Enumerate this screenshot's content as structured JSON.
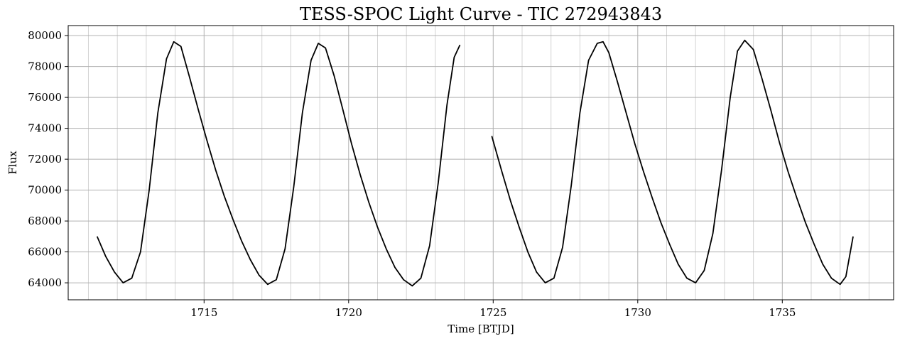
{
  "chart_data": {
    "type": "line",
    "title": "TESS-SPOC Light Curve - TIC 272943843",
    "xlabel": "Time [BTJD]",
    "ylabel": "Flux",
    "xlim": [
      1710.3,
      1738.85
    ],
    "ylim": [
      62900,
      80650
    ],
    "x_ticks": [
      1715,
      1720,
      1725,
      1730,
      1735
    ],
    "x_minor_grid": [
      1711,
      1712,
      1713,
      1714,
      1716,
      1717,
      1718,
      1719,
      1721,
      1722,
      1723,
      1724,
      1726,
      1727,
      1728,
      1729,
      1731,
      1732,
      1733,
      1734,
      1736,
      1737,
      1738
    ],
    "y_ticks": [
      64000,
      66000,
      68000,
      70000,
      72000,
      74000,
      76000,
      78000,
      80000
    ],
    "grid": true,
    "line_color": "#000000",
    "grid_color": "#b0b0b0",
    "series": [
      {
        "segments": [
          {
            "x": [
              1711.3,
              1711.6,
              1711.9,
              1712.2,
              1712.5,
              1712.8,
              1713.1,
              1713.4,
              1713.7,
              1713.95,
              1714.2,
              1714.5,
              1714.8,
              1715.1,
              1715.4,
              1715.7,
              1716.0,
              1716.3,
              1716.6,
              1716.9,
              1717.2,
              1717.5,
              1717.8,
              1718.1,
              1718.4,
              1718.7,
              1718.95,
              1719.2,
              1719.5,
              1719.8,
              1720.1,
              1720.4,
              1720.7,
              1721.0,
              1721.3,
              1721.6,
              1721.9,
              1722.2,
              1722.5,
              1722.8,
              1723.1,
              1723.4,
              1723.65,
              1723.85
            ],
            "y": [
              67000,
              65700,
              64700,
              64000,
              64300,
              66000,
              70000,
              75000,
              78500,
              79600,
              79300,
              77300,
              75200,
              73200,
              71300,
              69600,
              68100,
              66700,
              65500,
              64500,
              63900,
              64200,
              66200,
              70200,
              75000,
              78400,
              79500,
              79200,
              77400,
              75200,
              73000,
              71000,
              69200,
              67600,
              66200,
              65000,
              64200,
              63800,
              64300,
              66400,
              70500,
              75500,
              78600,
              79400
            ]
          },
          {
            "x": [
              1724.95,
              1725.3,
              1725.6,
              1725.9,
              1726.2,
              1726.5,
              1726.8,
              1727.1,
              1727.4,
              1727.7,
              1728.0,
              1728.3,
              1728.6,
              1728.8,
              1729.0,
              1729.3,
              1729.6,
              1729.9,
              1730.2,
              1730.5,
              1730.8,
              1731.1,
              1731.4,
              1731.7,
              1732.0,
              1732.3,
              1732.6,
              1732.9,
              1733.2,
              1733.45,
              1733.7,
              1734.0,
              1734.3,
              1734.6,
              1734.9,
              1735.2,
              1735.5,
              1735.8,
              1736.1,
              1736.4,
              1736.7,
              1737.0,
              1737.2,
              1737.45
            ],
            "y": [
              73500,
              71200,
              69300,
              67600,
              66000,
              64700,
              64000,
              64300,
              66300,
              70300,
              75000,
              78400,
              79500,
              79600,
              78900,
              77000,
              75000,
              73000,
              71200,
              69500,
              67900,
              66500,
              65200,
              64300,
              64000,
              64800,
              67200,
              71300,
              76000,
              79000,
              79700,
              79100,
              77200,
              75200,
              73100,
              71200,
              69500,
              67900,
              66500,
              65200,
              64300,
              63900,
              64400,
              67000
            ]
          }
        ]
      }
    ]
  }
}
